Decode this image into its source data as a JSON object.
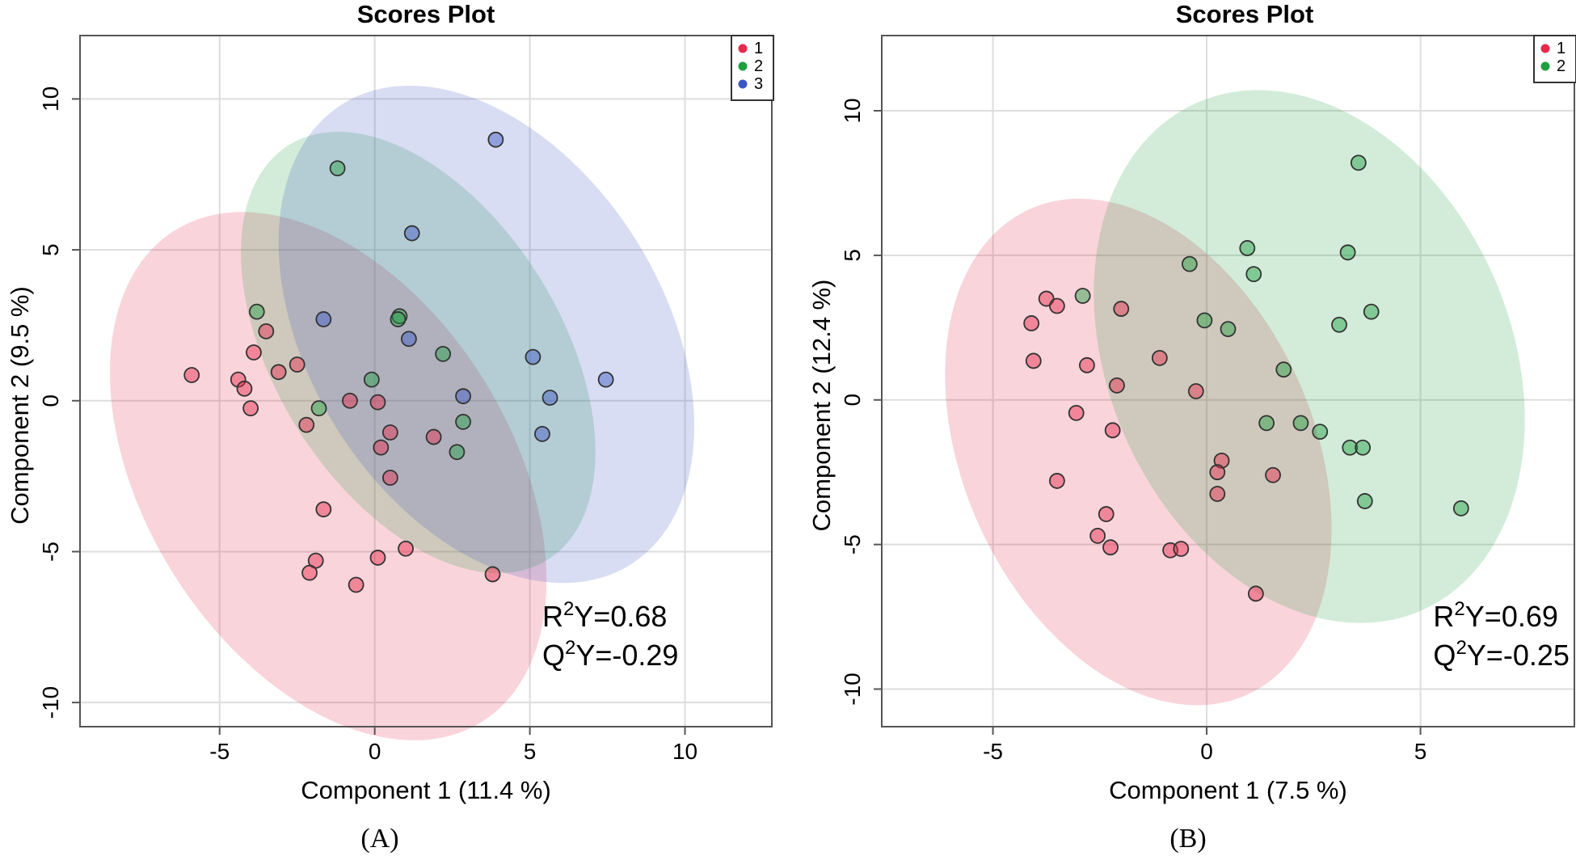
{
  "chart_data": [
    {
      "type": "scatter",
      "title": "Scores Plot",
      "xlabel": "Component 1 (11.4 %)",
      "ylabel": "Component 2 (9.5 %)",
      "caption": "(A)",
      "xlim": [
        -9.5,
        12.8
      ],
      "ylim": [
        -10.8,
        12.1
      ],
      "xticks": [
        -5,
        0,
        5,
        10
      ],
      "yticks": [
        -10,
        -5,
        0,
        5,
        10
      ],
      "grid": true,
      "legend_position": "top-right",
      "stats": {
        "r2": "0.68",
        "q2": "-0.29"
      },
      "series": [
        {
          "name": "1",
          "color": "#e8294a",
          "ellipse": {
            "cx": -1.5,
            "cy": -2.5,
            "rx": 5.9,
            "ry": 9.6,
            "angle_deg": -32
          },
          "points": [
            [
              -5.9,
              0.85
            ],
            [
              -4.4,
              0.7
            ],
            [
              -4.2,
              0.4
            ],
            [
              -4.0,
              -0.25
            ],
            [
              -3.9,
              1.6
            ],
            [
              -3.5,
              2.3
            ],
            [
              -3.1,
              0.95
            ],
            [
              -2.5,
              1.2
            ],
            [
              -2.2,
              -0.8
            ],
            [
              -0.8,
              0.0
            ],
            [
              0.1,
              -0.05
            ],
            [
              0.2,
              -1.55
            ],
            [
              0.5,
              -1.05
            ],
            [
              0.5,
              -2.55
            ],
            [
              1.9,
              -1.2
            ],
            [
              1.0,
              -4.9
            ],
            [
              0.1,
              -5.2
            ],
            [
              -1.65,
              -3.6
            ],
            [
              -1.9,
              -5.3
            ],
            [
              -2.1,
              -5.7
            ],
            [
              -0.6,
              -6.1
            ],
            [
              3.8,
              -5.75
            ]
          ]
        },
        {
          "name": "2",
          "color": "#1fa040",
          "ellipse": {
            "cx": 1.4,
            "cy": 1.6,
            "rx": 4.6,
            "ry": 8.1,
            "angle_deg": -32
          },
          "points": [
            [
              -1.2,
              7.7
            ],
            [
              -3.8,
              2.95
            ],
            [
              0.8,
              2.8
            ],
            [
              0.75,
              2.7
            ],
            [
              2.2,
              1.55
            ],
            [
              -0.1,
              0.7
            ],
            [
              -1.8,
              -0.25
            ],
            [
              2.85,
              -0.7
            ],
            [
              2.65,
              -1.7
            ]
          ]
        },
        {
          "name": "3",
          "color": "#3a57c5",
          "ellipse": {
            "cx": 3.6,
            "cy": 2.2,
            "rx": 5.7,
            "ry": 9.0,
            "angle_deg": -32
          },
          "points": [
            [
              3.9,
              8.65
            ],
            [
              1.2,
              5.55
            ],
            [
              -1.65,
              2.7
            ],
            [
              1.1,
              2.05
            ],
            [
              5.1,
              1.45
            ],
            [
              2.85,
              0.15
            ],
            [
              5.65,
              0.1
            ],
            [
              7.45,
              0.7
            ],
            [
              5.4,
              -1.1
            ]
          ]
        }
      ]
    },
    {
      "type": "scatter",
      "title": "Scores Plot",
      "xlabel": "Component 1 (7.5 %)",
      "ylabel": "Component 2 (12.4 %)",
      "caption": "(B)",
      "xlim": [
        -7.6,
        8.6
      ],
      "ylim": [
        -11.3,
        12.6
      ],
      "xticks": [
        -5,
        0,
        5
      ],
      "yticks": [
        -10,
        -5,
        0,
        5,
        10
      ],
      "grid": true,
      "legend_position": "top-right",
      "stats": {
        "r2": "0.69",
        "q2": "-0.25"
      },
      "series": [
        {
          "name": "1",
          "color": "#e8294a",
          "ellipse": {
            "cx": -1.6,
            "cy": -1.8,
            "rx": 4.1,
            "ry": 9.2,
            "angle_deg": -24
          },
          "points": [
            [
              -4.1,
              2.65
            ],
            [
              -3.75,
              3.5
            ],
            [
              -3.5,
              3.25
            ],
            [
              -2.0,
              3.15
            ],
            [
              -4.05,
              1.35
            ],
            [
              -2.8,
              1.2
            ],
            [
              -1.1,
              1.45
            ],
            [
              -2.1,
              0.5
            ],
            [
              -0.25,
              0.3
            ],
            [
              -3.05,
              -0.45
            ],
            [
              -2.2,
              -1.05
            ],
            [
              -3.5,
              -2.8
            ],
            [
              0.35,
              -2.1
            ],
            [
              0.25,
              -2.5
            ],
            [
              1.55,
              -2.6
            ],
            [
              0.25,
              -3.25
            ],
            [
              -2.35,
              -3.95
            ],
            [
              -2.55,
              -4.7
            ],
            [
              -2.25,
              -5.1
            ],
            [
              -0.85,
              -5.2
            ],
            [
              -0.6,
              -5.15
            ],
            [
              1.15,
              -6.7
            ]
          ]
        },
        {
          "name": "2",
          "color": "#1fa040",
          "ellipse": {
            "cx": 2.4,
            "cy": 1.5,
            "rx": 4.7,
            "ry": 9.6,
            "angle_deg": -24
          },
          "points": [
            [
              3.55,
              8.2
            ],
            [
              0.95,
              5.25
            ],
            [
              3.3,
              5.1
            ],
            [
              -0.4,
              4.7
            ],
            [
              1.1,
              4.35
            ],
            [
              -2.9,
              3.6
            ],
            [
              3.85,
              3.05
            ],
            [
              -0.05,
              2.75
            ],
            [
              0.5,
              2.45
            ],
            [
              3.1,
              2.6
            ],
            [
              1.8,
              1.05
            ],
            [
              1.4,
              -0.8
            ],
            [
              2.2,
              -0.8
            ],
            [
              2.65,
              -1.1
            ],
            [
              3.35,
              -1.65
            ],
            [
              3.65,
              -1.65
            ],
            [
              3.7,
              -3.5
            ],
            [
              5.95,
              -3.75
            ]
          ]
        }
      ]
    }
  ]
}
